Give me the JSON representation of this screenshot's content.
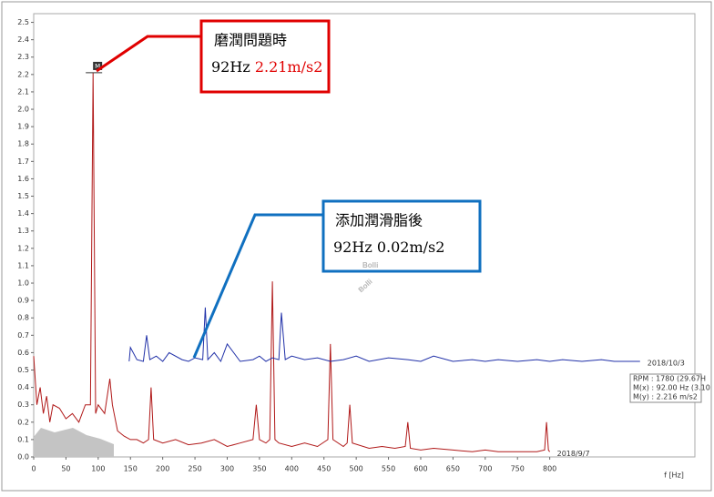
{
  "chart_data": {
    "type": "line",
    "x_label": "f [Hz]",
    "xlim": [
      0,
      1025
    ],
    "ylim": [
      0,
      2.55
    ],
    "xticks": [
      0,
      50,
      100,
      150,
      200,
      250,
      300,
      350,
      400,
      450,
      500,
      550,
      600,
      650,
      700,
      750,
      800
    ],
    "yticks": [
      {
        "value": 0,
        "label": "0.0"
      },
      0.1,
      0.2,
      0.3,
      0.4,
      0.5,
      0.6,
      0.7,
      0.8,
      0.9,
      {
        "value": 1,
        "label": "1.0"
      },
      1.1,
      1.2,
      1.3,
      1.4,
      1.5,
      1.6,
      1.7,
      1.8,
      1.9,
      {
        "value": 2,
        "label": "2.0"
      },
      2.1,
      2.2,
      2.3,
      2.4,
      2.5
    ],
    "grid": false,
    "series": [
      {
        "name": "2018/9/7",
        "color": "#b01818",
        "x": [
          0,
          5,
          10,
          15,
          20,
          25,
          30,
          40,
          50,
          60,
          70,
          80,
          88,
          92,
          96,
          100,
          110,
          118,
          122,
          130,
          140,
          150,
          160,
          170,
          178,
          182,
          186,
          200,
          220,
          240,
          260,
          280,
          300,
          320,
          340,
          345,
          350,
          360,
          366,
          370,
          374,
          380,
          400,
          420,
          440,
          456,
          460,
          464,
          480,
          486,
          490,
          494,
          520,
          540,
          560,
          576,
          580,
          584,
          600,
          620,
          650,
          680,
          700,
          720,
          750,
          780,
          792,
          795,
          798,
          800
        ],
        "values": [
          0.58,
          0.3,
          0.4,
          0.25,
          0.35,
          0.2,
          0.3,
          0.28,
          0.22,
          0.25,
          0.2,
          0.3,
          0.3,
          2.21,
          0.25,
          0.3,
          0.25,
          0.45,
          0.3,
          0.15,
          0.12,
          0.1,
          0.1,
          0.08,
          0.1,
          0.4,
          0.1,
          0.08,
          0.1,
          0.07,
          0.08,
          0.1,
          0.06,
          0.08,
          0.1,
          0.3,
          0.1,
          0.08,
          0.1,
          1.01,
          0.1,
          0.08,
          0.06,
          0.08,
          0.06,
          0.1,
          0.65,
          0.1,
          0.06,
          0.08,
          0.3,
          0.08,
          0.05,
          0.06,
          0.05,
          0.06,
          0.2,
          0.05,
          0.04,
          0.05,
          0.04,
          0.03,
          0.04,
          0.03,
          0.03,
          0.03,
          0.04,
          0.2,
          0.04,
          0.03
        ]
      },
      {
        "name": "2018/10/3",
        "color": "#2030a8",
        "x": [
          148,
          150,
          160,
          170,
          175,
          180,
          190,
          200,
          210,
          230,
          240,
          250,
          262,
          266,
          270,
          280,
          290,
          300,
          320,
          340,
          350,
          360,
          370,
          380,
          384,
          390,
          400,
          420,
          440,
          460,
          480,
          500,
          520,
          550,
          580,
          600,
          620,
          650,
          680,
          700,
          720,
          750,
          780,
          800,
          820,
          850,
          880,
          900,
          940
        ],
        "values": [
          0.55,
          0.63,
          0.56,
          0.55,
          0.7,
          0.56,
          0.58,
          0.55,
          0.6,
          0.56,
          0.55,
          0.57,
          0.56,
          0.86,
          0.56,
          0.6,
          0.55,
          0.65,
          0.55,
          0.56,
          0.58,
          0.55,
          0.57,
          0.56,
          0.83,
          0.56,
          0.58,
          0.56,
          0.57,
          0.55,
          0.56,
          0.58,
          0.55,
          0.57,
          0.56,
          0.55,
          0.58,
          0.55,
          0.56,
          0.55,
          0.56,
          0.55,
          0.56,
          0.55,
          0.56,
          0.55,
          0.56,
          0.55,
          0.55
        ]
      }
    ],
    "marker_label": "M",
    "cursor_info": [
      "RPM : 1780 (29.67H",
      "M(x) : 92.00 Hz (3.10",
      "M(y) : 2.216 m/s2"
    ],
    "annotations": [
      {
        "title": "磨潤問題時",
        "freq": "92Hz",
        "amp": "2.21m/s2"
      },
      {
        "title": "添加潤滑脂後",
        "freq": "92Hz",
        "amp": "0.02m/s2"
      }
    ],
    "watermark": [
      "Bolli",
      "Bolli"
    ]
  }
}
